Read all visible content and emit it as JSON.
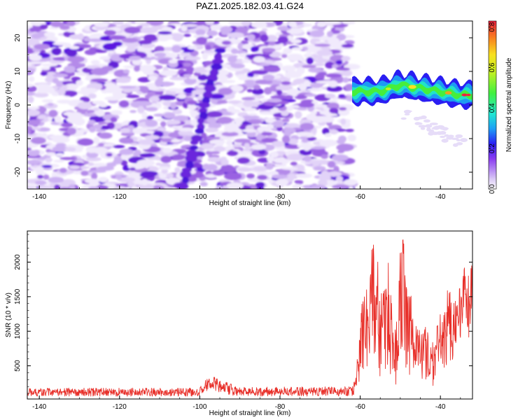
{
  "chart_data": [
    {
      "type": "heatmap",
      "title": "PAZ1.2025.182.03.41.G24",
      "xlabel": "Height of straight line (km)",
      "ylabel": "Frequency (Hz)",
      "xlim": [
        -143,
        -32
      ],
      "ylim": [
        -25,
        25
      ],
      "xticks": [
        "-140",
        "-120",
        "-100",
        "-80",
        "-60",
        "-40"
      ],
      "yticks": [
        "-20",
        "-10",
        "0",
        "10",
        "20"
      ],
      "colorbar": {
        "label": "Normalized spectral amplitude",
        "range": [
          0,
          0.83
        ],
        "ticks": [
          "0.0",
          "0.2",
          "0.4",
          "0.6",
          "0.8"
        ]
      },
      "features": {
        "noise_region_km": [
          -143,
          -62
        ],
        "signal_track_km": [
          -62,
          -32
        ],
        "signal_frequency_hz": [
          [
            -62,
            4
          ],
          [
            -55,
            4
          ],
          [
            -50,
            6
          ],
          [
            -45,
            5
          ],
          [
            -40,
            4
          ],
          [
            -35,
            3
          ],
          [
            -32,
            3
          ]
        ],
        "signal_peak_amplitude": 0.8
      }
    },
    {
      "type": "line",
      "xlabel": "Height of straight line (km)",
      "ylabel": "SNR (10 * v/v)",
      "xlim": [
        -143,
        -32
      ],
      "ylim": [
        20,
        2450
      ],
      "xticks": [
        "-140",
        "-120",
        "-100",
        "-80",
        "-60",
        "-40"
      ],
      "yticks": [
        "500",
        "1000",
        "1500",
        "2000"
      ],
      "color": "#e8302a",
      "envelope": {
        "x": [
          -143,
          -100,
          -98,
          -96,
          -93,
          -90,
          -62,
          -61,
          -60,
          -59,
          -58,
          -57,
          -56,
          -55,
          -54,
          -53,
          -52,
          -51,
          -50,
          -49,
          -48,
          -47,
          -46,
          -45,
          -44,
          -43,
          -42,
          -41,
          -40,
          -39,
          -38,
          -37,
          -36,
          -35,
          -34,
          -33,
          -32
        ],
        "low": [
          60,
          60,
          140,
          120,
          80,
          60,
          60,
          120,
          250,
          400,
          300,
          500,
          200,
          350,
          150,
          400,
          300,
          200,
          250,
          350,
          300,
          250,
          200,
          350,
          250,
          300,
          200,
          150,
          350,
          300,
          600,
          450,
          700,
          700,
          900,
          600,
          1050
        ],
        "high": [
          180,
          180,
          360,
          330,
          260,
          190,
          200,
          450,
          1200,
          1800,
          1500,
          2300,
          2450,
          1600,
          1700,
          2100,
          1300,
          1500,
          2300,
          2450,
          1900,
          1400,
          1200,
          1300,
          1100,
          1000,
          900,
          1100,
          1300,
          1400,
          1700,
          1400,
          1500,
          1750,
          1950,
          1800,
          2000
        ]
      }
    }
  ]
}
